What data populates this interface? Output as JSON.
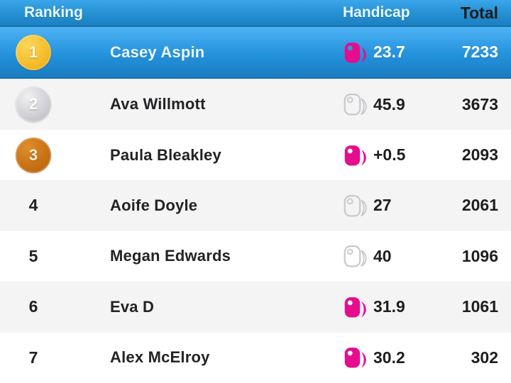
{
  "header": {
    "ranking_label": "Ranking",
    "handicap_label": "Handicap",
    "total_label": "Total"
  },
  "colors": {
    "header_blue_top": "#3ba7ea",
    "header_blue_bottom": "#1b80c2",
    "highlight_row_top": "#4db2f3",
    "highlight_row_bottom": "#1a7dc0",
    "accent_pink": "#e50d8e",
    "icon_outline_gray": "#c9c9cd",
    "row_alt_bg": "#f4f4f5",
    "row_bg": "#ffffff",
    "medal_gold": "#f2b71e",
    "medal_silver": "#c3c3c8",
    "medal_bronze": "#c96f14",
    "text_dark": "#1e1e20"
  },
  "rows": [
    {
      "rank": "1",
      "medal": "gold",
      "name": "Casey Aspin",
      "handicap": "23.7",
      "handicap_icon": "filled-handicap-icon",
      "total": "7233",
      "highlighted": true
    },
    {
      "rank": "2",
      "medal": "silver",
      "name": "Ava Willmott",
      "handicap": "45.9",
      "handicap_icon": "outline-handicap-icon",
      "total": "3673",
      "highlighted": false
    },
    {
      "rank": "3",
      "medal": "bronze",
      "name": "Paula Bleakley",
      "handicap": "+0.5",
      "handicap_icon": "filled-handicap-icon",
      "total": "2093",
      "highlighted": false
    },
    {
      "rank": "4",
      "medal": null,
      "name": "Aoife Doyle",
      "handicap": "27",
      "handicap_icon": "outline-handicap-icon",
      "total": "2061",
      "highlighted": false
    },
    {
      "rank": "5",
      "medal": null,
      "name": "Megan Edwards",
      "handicap": "40",
      "handicap_icon": "outline-handicap-icon",
      "total": "1096",
      "highlighted": false
    },
    {
      "rank": "6",
      "medal": null,
      "name": "Eva D",
      "handicap": "31.9",
      "handicap_icon": "filled-handicap-icon",
      "total": "1061",
      "highlighted": false
    },
    {
      "rank": "7",
      "medal": null,
      "name": "Alex McElroy",
      "handicap": "30.2",
      "handicap_icon": "filled-handicap-icon",
      "total": "302",
      "highlighted": false
    }
  ]
}
